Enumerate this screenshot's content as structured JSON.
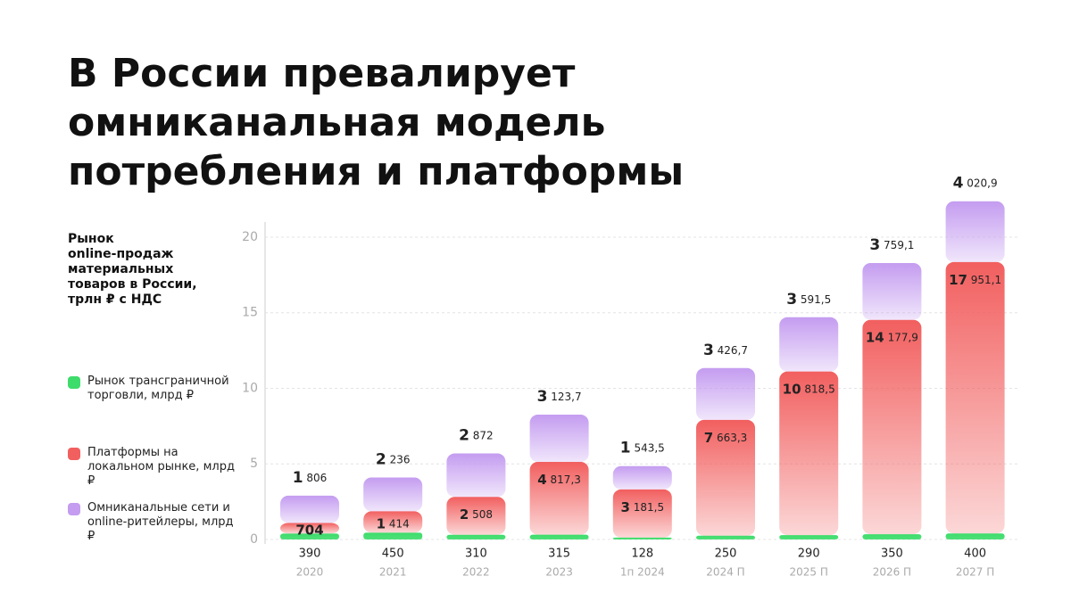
{
  "chart_data": {
    "type": "stacked_bar",
    "title": [
      "В России превалирует",
      "омниканальная модель",
      "потребления и платформы"
    ],
    "ylabel": [
      "Рынок",
      "online-продаж",
      "материальных",
      "товаров в России,",
      "трлн ₽ с НДС"
    ],
    "categories": [
      "2020",
      "2021",
      "2022",
      "2023",
      "1п 2024",
      "2024 П",
      "2025 П",
      "2026 П",
      "2027 П"
    ],
    "ylim": [
      0,
      21
    ],
    "yticks": [
      0,
      5,
      10,
      15,
      20
    ],
    "grid": true,
    "series": [
      {
        "name": "Рынок трансграничной торговли, млрд ₽",
        "color": "#3ddc6b",
        "values": [
          0.39,
          0.45,
          0.31,
          0.315,
          0.128,
          0.25,
          0.29,
          0.35,
          0.4
        ],
        "value_labels": [
          "390",
          "450",
          "310",
          "315",
          "128",
          "250",
          "290",
          "350",
          "400"
        ]
      },
      {
        "name": "Платформы на локальном рынке, млрд ₽",
        "color": "#f25f5f",
        "values": [
          0.704,
          1.414,
          2.508,
          4.8173,
          3.1815,
          7.6633,
          10.8185,
          14.1779,
          17.9511
        ],
        "value_labels": [
          "704",
          "1 414",
          "2 508",
          "4 817,3",
          "3 181,5",
          "7 663,3",
          "10 818,5",
          "14 177,9",
          "17 951,1"
        ]
      },
      {
        "name": "Омниканальные сети и online-ритейлеры, млрд ₽",
        "color": "#c49cf0",
        "values": [
          1.806,
          2.236,
          2.872,
          3.1237,
          1.5435,
          3.4267,
          3.5915,
          3.7591,
          4.0209
        ],
        "value_labels": [
          "1 806",
          "2 236",
          "2 872",
          "3 123,7",
          "1 543,5",
          "3 426,7",
          "3 591,5",
          "3 759,1",
          "4 020,9"
        ]
      }
    ]
  }
}
